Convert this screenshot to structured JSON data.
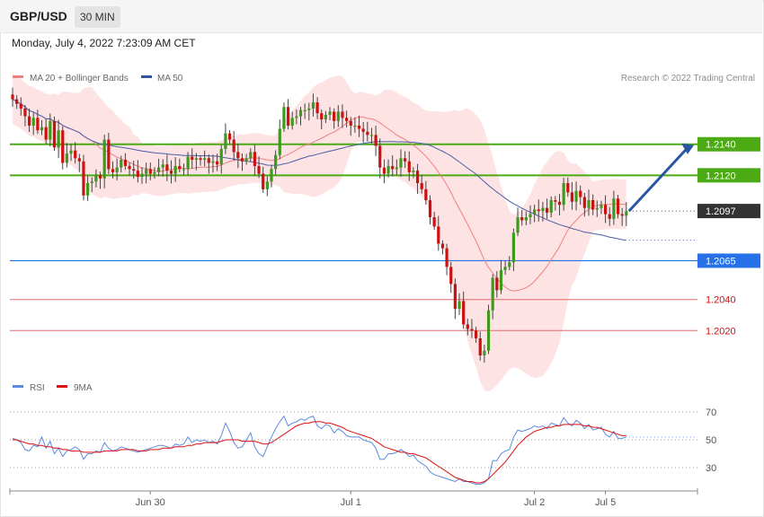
{
  "header": {
    "symbol": "GBP/USD",
    "timeframe": "30 MIN"
  },
  "datetime": "Monday, July 4, 2022 7:23:09 AM CET",
  "credit": "Research © 2022 Trading Central",
  "colors": {
    "bullish": "#3d9a1c",
    "bearish": "#cc1111",
    "ma20": "#f08080",
    "ma50": "#4a5fa8",
    "bollinger_fill": "#fde3e3",
    "resistance": "#4caa14",
    "pivot": "#2670e8",
    "support": "#e86a6a",
    "current_price": "#333333",
    "rsi": "#5b8be0",
    "rsi_ma": "#dd1111",
    "arrow": "#2a55a5"
  },
  "chart_data": [
    {
      "type": "candlestick",
      "name": "price",
      "legend": [
        {
          "label": "MA 20 + Bollinger Bands",
          "color": "#f08080"
        },
        {
          "label": "MA 50",
          "color": "#2c56a0"
        }
      ],
      "ylim": [
        1.1993,
        1.2178
      ],
      "x_ticks": [
        {
          "label": "Jun 30",
          "index": 33
        },
        {
          "label": "Jul 1",
          "index": 81
        },
        {
          "label": "Jul 2",
          "index": 125
        },
        {
          "label": "Jul 5",
          "index": 142
        }
      ],
      "levels": [
        {
          "value": 1.214,
          "label": "1.2140",
          "kind": "resistance"
        },
        {
          "value": 1.212,
          "label": "1.2120",
          "kind": "resistance"
        },
        {
          "value": 1.2097,
          "label": "1.2097",
          "kind": "current"
        },
        {
          "value": 1.2065,
          "label": "1.2065",
          "kind": "pivot"
        },
        {
          "value": 1.204,
          "label": "1.2040",
          "kind": "support"
        },
        {
          "value": 1.202,
          "label": "1.2020",
          "kind": "support"
        }
      ],
      "forecast_arrow": {
        "from": 1.2097,
        "to": 1.214
      },
      "closes": [
        1.2169,
        1.2166,
        1.2163,
        1.2158,
        1.2152,
        1.2157,
        1.2149,
        1.2151,
        1.2143,
        1.2155,
        1.2138,
        1.2149,
        1.2128,
        1.2134,
        1.2136,
        1.2131,
        1.2129,
        1.2107,
        1.2115,
        1.2116,
        1.212,
        1.2118,
        1.2143,
        1.2124,
        1.2122,
        1.2125,
        1.213,
        1.2126,
        1.2124,
        1.2123,
        1.2119,
        1.2121,
        1.2124,
        1.2121,
        1.2122,
        1.2125,
        1.2127,
        1.2123,
        1.2121,
        1.2126,
        1.2124,
        1.2124,
        1.2132,
        1.213,
        1.2131,
        1.213,
        1.2131,
        1.2128,
        1.2129,
        1.2127,
        1.2137,
        1.2147,
        1.2143,
        1.2135,
        1.2131,
        1.2129,
        1.2131,
        1.2135,
        1.2126,
        1.2121,
        1.2111,
        1.2116,
        1.2124,
        1.2133,
        1.215,
        1.2164,
        1.2152,
        1.2157,
        1.2158,
        1.2162,
        1.2162,
        1.2163,
        1.2167,
        1.216,
        1.2156,
        1.2159,
        1.2161,
        1.2155,
        1.2161,
        1.2157,
        1.2155,
        1.2152,
        1.2152,
        1.215,
        1.2148,
        1.2146,
        1.2146,
        1.2139,
        1.2125,
        1.2121,
        1.2126,
        1.2124,
        1.2125,
        1.2131,
        1.2129,
        1.2122,
        1.2123,
        1.2115,
        1.2111,
        1.2104,
        1.2093,
        1.2087,
        1.2076,
        1.2073,
        1.2061,
        1.205,
        1.2034,
        1.2039,
        1.2024,
        1.2021,
        1.202,
        1.2015,
        1.2004,
        1.2007,
        1.2033,
        1.2054,
        1.2046,
        1.2059,
        1.2061,
        1.2064,
        1.2083,
        1.2093,
        1.2091,
        1.2093,
        1.2095,
        1.2098,
        1.2097,
        1.2099,
        1.2096,
        1.2104,
        1.2103,
        1.2101,
        1.2115,
        1.2109,
        1.2103,
        1.211,
        1.2106,
        1.2099,
        1.2104,
        1.2098,
        1.2099,
        1.2101,
        1.2095,
        1.2092,
        1.2105,
        1.2095,
        1.2094,
        1.2097
      ]
    },
    {
      "type": "line",
      "name": "RSI",
      "legend": [
        {
          "label": "RSI",
          "color": "#5b8be0"
        },
        {
          "label": "9MA",
          "color": "#dd1111"
        }
      ],
      "ylim": [
        10,
        80
      ],
      "y_ticks": [
        70,
        50,
        30
      ],
      "current_value": 52,
      "rsi": [
        51,
        50,
        48,
        43,
        42,
        46,
        45,
        52,
        44,
        49,
        40,
        44,
        38,
        42,
        43,
        45,
        43,
        36,
        40,
        40,
        42,
        41,
        48,
        44,
        42,
        43,
        45,
        44,
        43,
        42,
        41,
        42,
        43,
        44,
        45,
        46,
        46,
        45,
        44,
        47,
        46,
        47,
        52,
        48,
        50,
        49,
        50,
        48,
        49,
        47,
        53,
        62,
        56,
        48,
        44,
        45,
        50,
        55,
        45,
        40,
        38,
        45,
        52,
        58,
        63,
        67,
        60,
        62,
        63,
        65,
        64,
        66,
        67,
        60,
        58,
        61,
        60,
        55,
        58,
        56,
        53,
        52,
        52,
        52,
        50,
        49,
        48,
        44,
        36,
        36,
        40,
        40,
        41,
        43,
        41,
        38,
        39,
        35,
        33,
        31,
        27,
        25,
        24,
        23,
        22,
        21,
        20,
        22,
        20,
        20,
        19,
        18,
        18,
        19,
        22,
        35,
        35,
        40,
        42,
        43,
        52,
        57,
        56,
        57,
        58,
        60,
        59,
        60,
        58,
        62,
        61,
        60,
        66,
        62,
        60,
        64,
        62,
        58,
        61,
        57,
        58,
        59,
        54,
        52,
        56,
        51,
        51,
        52
      ],
      "rsi_ma": [
        50,
        50,
        49,
        48,
        47,
        47,
        46,
        46,
        45,
        45,
        44,
        44,
        43,
        43,
        42,
        42,
        42,
        41,
        41,
        41,
        41,
        41,
        42,
        42,
        42,
        42,
        43,
        43,
        43,
        43,
        42,
        42,
        42,
        43,
        43,
        43,
        44,
        44,
        44,
        45,
        45,
        45,
        46,
        46,
        47,
        47,
        48,
        48,
        48,
        48,
        49,
        50,
        50,
        50,
        50,
        49,
        49,
        49,
        49,
        48,
        47,
        47,
        48,
        50,
        52,
        54,
        56,
        58,
        60,
        61,
        62,
        62,
        63,
        63,
        63,
        62,
        62,
        61,
        60,
        59,
        57,
        56,
        55,
        54,
        53,
        52,
        51,
        49,
        47,
        45,
        44,
        43,
        42,
        41,
        41,
        40,
        40,
        39,
        38,
        37,
        35,
        33,
        31,
        29,
        27,
        25,
        23,
        22,
        21,
        20,
        20,
        19,
        19,
        20,
        22,
        25,
        28,
        31,
        34,
        38,
        42,
        46,
        49,
        52,
        54,
        56,
        57,
        58,
        59,
        59,
        60,
        60,
        61,
        61,
        61,
        61,
        61,
        60,
        60,
        59,
        59,
        58,
        57,
        56,
        55,
        54,
        53,
        53
      ]
    }
  ],
  "rsi_legend": {
    "rsi": "RSI",
    "ma": "9MA"
  },
  "price_legend": {
    "ma20": "MA 20 + Bollinger Bands",
    "ma50": "MA 50"
  }
}
